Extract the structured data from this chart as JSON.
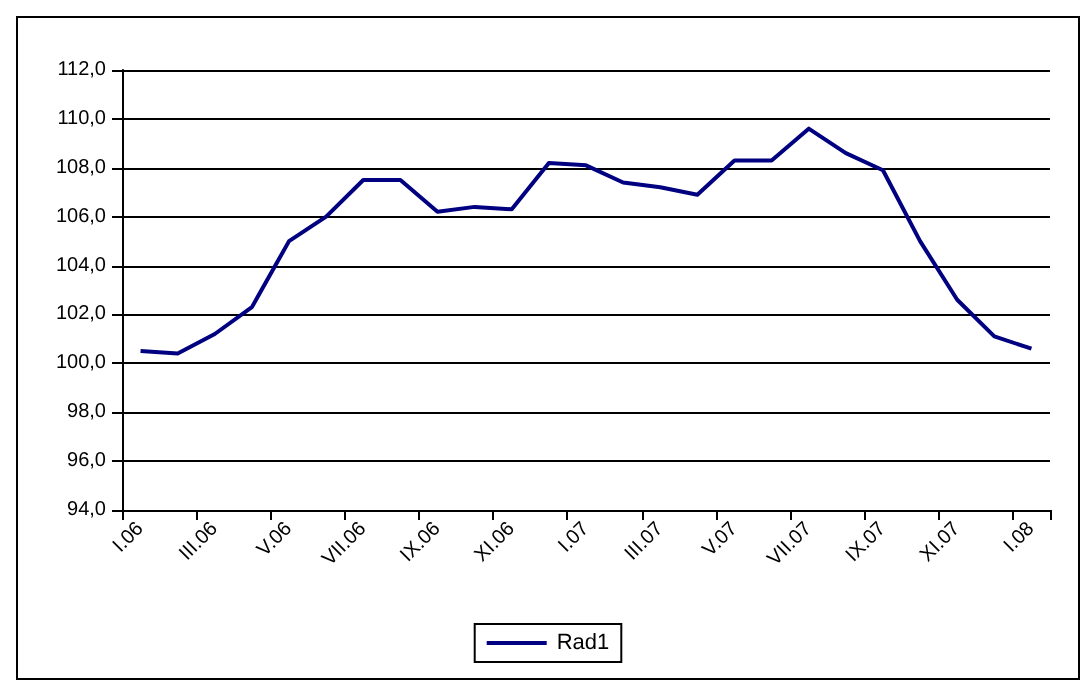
{
  "chart_data": {
    "type": "line",
    "categories": [
      "I.06",
      null,
      "III.06",
      null,
      "V.06",
      null,
      "VII.06",
      null,
      "IX.06",
      null,
      "XI.06",
      null,
      "I.07",
      null,
      "III.07",
      null,
      "V.07",
      null,
      "VII.07",
      null,
      "IX.07",
      null,
      "XI.07",
      null,
      "I.08"
    ],
    "series": [
      {
        "name": "Rad1",
        "color": "#000080",
        "values": [
          100.5,
          100.4,
          101.2,
          102.3,
          105.0,
          106.0,
          107.5,
          107.5,
          106.2,
          106.4,
          106.3,
          108.2,
          108.1,
          107.4,
          107.2,
          106.9,
          108.3,
          108.3,
          109.6,
          108.6,
          107.9,
          105.0,
          102.6,
          101.1,
          100.6
        ]
      }
    ],
    "ylim": [
      94,
      112
    ],
    "yticks": [
      {
        "value": 94,
        "label": "94,0"
      },
      {
        "value": 96,
        "label": "96,0"
      },
      {
        "value": 98,
        "label": "98,0"
      },
      {
        "value": 100,
        "label": "100,0"
      },
      {
        "value": 102,
        "label": "102,0"
      },
      {
        "value": 104,
        "label": "104,0"
      },
      {
        "value": 106,
        "label": "106,0"
      },
      {
        "value": 108,
        "label": "108,0"
      },
      {
        "value": 110,
        "label": "110,0"
      },
      {
        "value": 112,
        "label": "112,0"
      }
    ],
    "grid": "y",
    "legend": "bottom",
    "marker": "none",
    "line_style": "solid"
  }
}
